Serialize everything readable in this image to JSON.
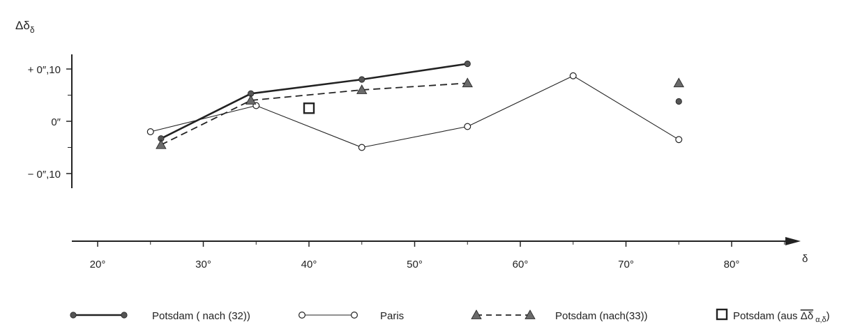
{
  "chart_data": {
    "type": "line",
    "title": "",
    "ylabel": "Δδδ",
    "xlabel": "δ",
    "y_ticks": [
      {
        "value": 0.1,
        "label": "+ 0″,10"
      },
      {
        "value": 0.0,
        "label": "0″"
      },
      {
        "value": -0.1,
        "label": "− 0″,10"
      }
    ],
    "x_ticks": [
      {
        "value": 20,
        "label": "20°"
      },
      {
        "value": 30,
        "label": "30°"
      },
      {
        "value": 40,
        "label": "40°"
      },
      {
        "value": 50,
        "label": "50°"
      },
      {
        "value": 60,
        "label": "60°"
      },
      {
        "value": 70,
        "label": "70°"
      },
      {
        "value": 80,
        "label": "80°"
      }
    ],
    "xlim": [
      17,
      89
    ],
    "ylim": [
      -0.13,
      0.13
    ],
    "grid": false,
    "legend_position": "bottom",
    "series": [
      {
        "name": "Potsdam  ( nach (32))",
        "marker": "filled-circle",
        "line": "solid-thick",
        "x": [
          26,
          34.5,
          45,
          55
        ],
        "y": [
          -0.033,
          0.053,
          0.08,
          0.11
        ],
        "extra_points": [
          {
            "x": 75,
            "y": 0.038
          }
        ]
      },
      {
        "name": "Paris",
        "marker": "open-circle",
        "line": "solid-thin",
        "x": [
          25,
          35,
          45,
          55,
          65,
          75
        ],
        "y": [
          -0.02,
          0.03,
          -0.05,
          -0.01,
          0.087,
          -0.035
        ]
      },
      {
        "name": "Potsdam (nach(33))",
        "marker": "filled-triangle",
        "line": "dashed",
        "x": [
          26,
          34.5,
          45,
          55
        ],
        "y": [
          -0.045,
          0.04,
          0.06,
          0.073
        ],
        "extra_points": [
          {
            "x": 75,
            "y": 0.073
          }
        ]
      },
      {
        "name": "Potsdam (aus ",
        "name_overline": "Δδ",
        "name_sub": "α,δ",
        "name_end": ")",
        "marker": "open-square",
        "line": "none",
        "x": [
          40
        ],
        "y": [
          0.025
        ]
      }
    ],
    "colors": {
      "ink": "#222222",
      "marker_fill": "#555555",
      "triangle_fill": "#6a6a6a"
    }
  }
}
